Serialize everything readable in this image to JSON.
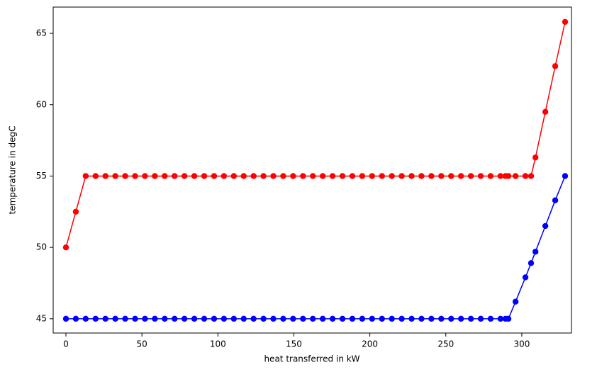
{
  "chart_data": {
    "type": "line",
    "x_label": "heat transferred in kW",
    "y_label": "temperature in degC",
    "x": [
      0,
      6.5,
      13,
      19.5,
      26,
      32.5,
      39,
      45.5,
      52,
      58.5,
      65,
      71.5,
      78,
      84.5,
      91,
      97.5,
      104,
      110.5,
      117,
      123.5,
      130,
      136.5,
      143,
      149.5,
      156,
      162.5,
      169,
      175.5,
      182,
      188.5,
      195,
      201.5,
      208,
      214.5,
      221,
      227.5,
      234,
      240.5,
      247,
      253.5,
      260,
      266.5,
      273,
      279.5,
      286,
      289.3,
      291.2,
      295.9,
      302.4,
      306.1,
      309,
      315.5,
      322,
      328.5
    ],
    "series": [
      {
        "color": "#ff0000",
        "values": [
          50,
          52.5,
          55,
          55,
          55,
          55,
          55,
          55,
          55,
          55,
          55,
          55,
          55,
          55,
          55,
          55,
          55,
          55,
          55,
          55,
          55,
          55,
          55,
          55,
          55,
          55,
          55,
          55,
          55,
          55,
          55,
          55,
          55,
          55,
          55,
          55,
          55,
          55,
          55,
          55,
          55,
          55,
          55,
          55,
          55,
          55,
          55,
          55,
          55,
          55,
          56.3,
          59.5,
          62.7,
          65.8
        ]
      },
      {
        "color": "#0000ff",
        "values": [
          45,
          45,
          45,
          45,
          45,
          45,
          45,
          45,
          45,
          45,
          45,
          45,
          45,
          45,
          45,
          45,
          45,
          45,
          45,
          45,
          45,
          45,
          45,
          45,
          45,
          45,
          45,
          45,
          45,
          45,
          45,
          45,
          45,
          45,
          45,
          45,
          45,
          45,
          45,
          45,
          45,
          45,
          45,
          45,
          45,
          45,
          45,
          46.2,
          47.9,
          48.9,
          49.7,
          51.5,
          53.3,
          55
        ]
      }
    ],
    "xlim": [
      -8.4,
      332.7
    ],
    "ylim": [
      44.0,
      66.84
    ],
    "xticks": [
      0,
      50,
      100,
      150,
      200,
      250,
      300
    ],
    "yticks": [
      45,
      50,
      55,
      60,
      65
    ],
    "grid": false
  }
}
